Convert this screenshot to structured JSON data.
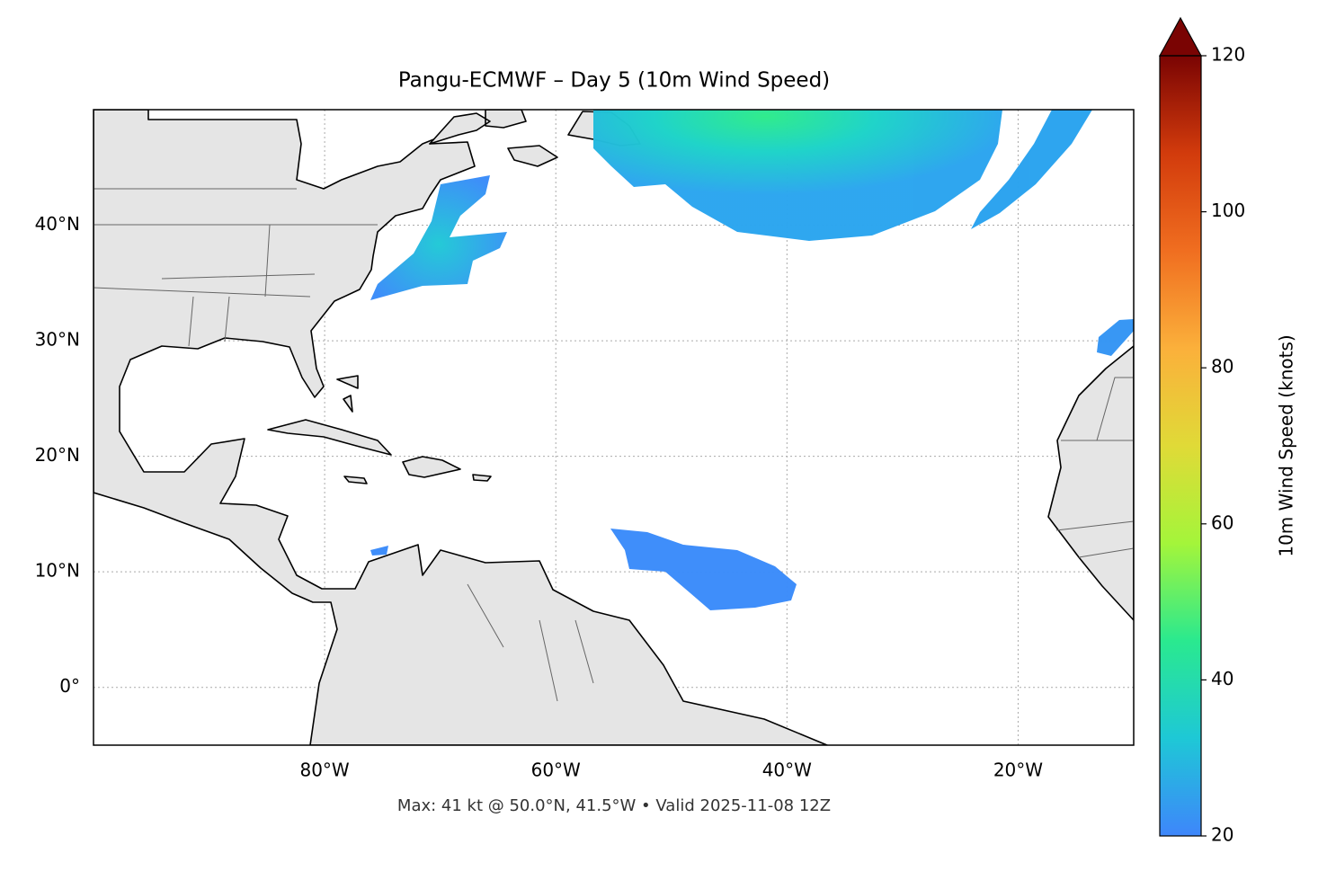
{
  "chart_data": {
    "type": "map",
    "title": "Pangu-ECMWF – Day 5 (10m Wind Speed)",
    "note": "Max: 41 kt @ 50.0°N, 41.5°W • Valid 2025-11-08 12Z",
    "xlim": [
      -100,
      -10
    ],
    "ylim": [
      -5,
      50
    ],
    "xticks": [
      {
        "value": -80,
        "label": "80°W"
      },
      {
        "value": -60,
        "label": "60°W"
      },
      {
        "value": -40,
        "label": "40°W"
      },
      {
        "value": -20,
        "label": "20°W"
      }
    ],
    "yticks": [
      {
        "value": 0,
        "label": "0°"
      },
      {
        "value": 10,
        "label": "10°N"
      },
      {
        "value": 20,
        "label": "20°N"
      },
      {
        "value": 30,
        "label": "30°N"
      },
      {
        "value": 40,
        "label": "40°N"
      }
    ],
    "grid": true,
    "colorbar": {
      "label": "10m Wind Speed (knots)",
      "lim": [
        20,
        120
      ],
      "ticks": [
        20,
        40,
        60,
        80,
        100,
        120
      ],
      "extend": "max",
      "colors": [
        "#3e86fb",
        "#1ec8d6",
        "#2ae98f",
        "#a4f53a",
        "#e0da37",
        "#fbb03b",
        "#f06e20",
        "#d23b0c",
        "#7a0403"
      ]
    }
  }
}
